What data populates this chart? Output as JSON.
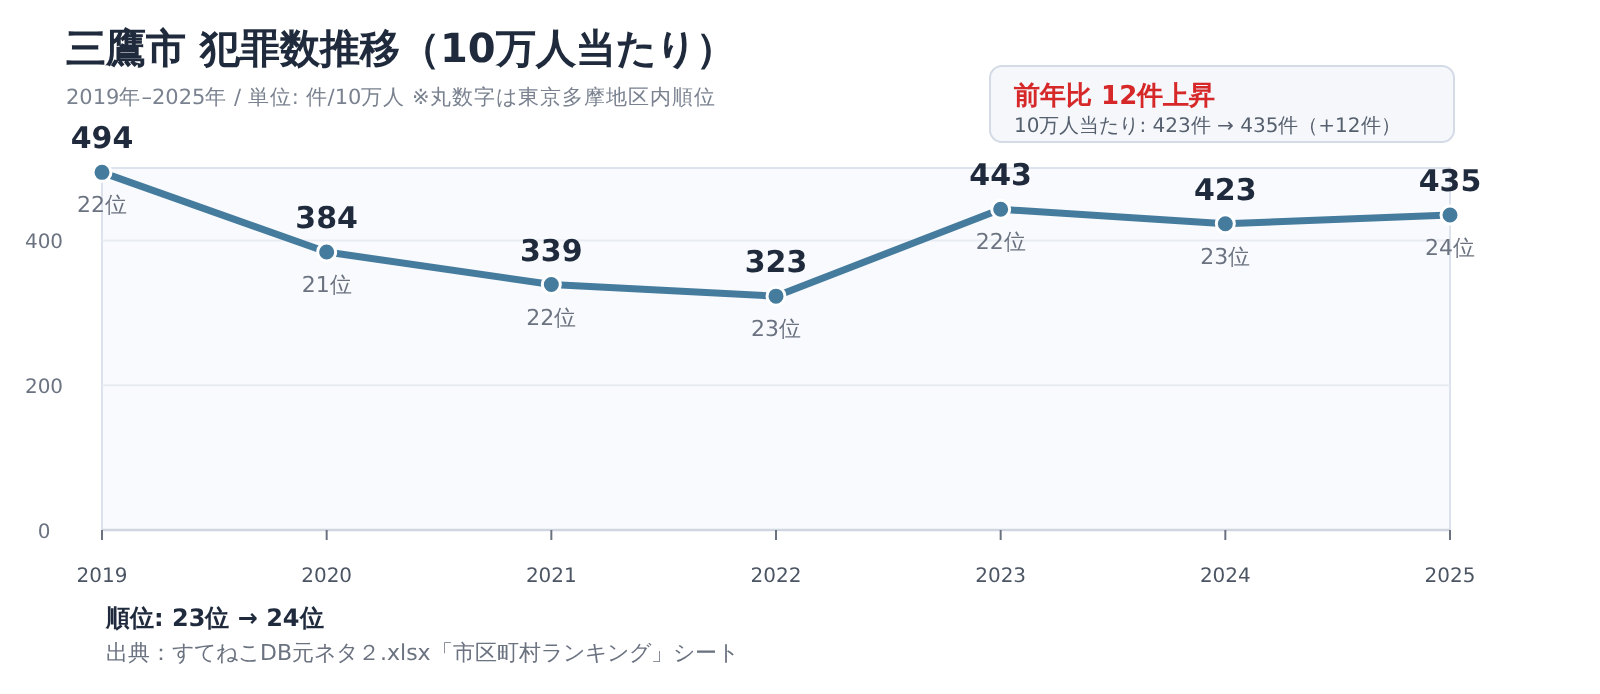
{
  "chart_data": {
    "type": "line",
    "title": "三鷹市  犯罪数推移（10万人当たり）",
    "subtitle": "2019年–2025年 / 単位: 件/10万人     ※丸数字は東京多摩地区内順位",
    "categories": [
      "2019",
      "2020",
      "2021",
      "2022",
      "2023",
      "2024",
      "2025"
    ],
    "series": [
      {
        "color": "#457b9d",
        "values": [
          494,
          384,
          339,
          323,
          443,
          423,
          435
        ]
      }
    ],
    "ylim": [
      0,
      500
    ],
    "yticks": [
      0,
      200,
      400
    ],
    "grid": "y",
    "marker": "circle",
    "line_style": "solid",
    "data_labels": true,
    "annotations": [
      "前年比  12件上昇",
      "10万人当たり: 423件 → 435件（+12件）",
      "順位: 23位 → 24位",
      "出典：すてねこDB元ネタ２.xlsx「市区町村ランキング」シート",
      {
        "text": "22位",
        "x": "2019",
        "y": 494
      },
      {
        "text": "21位",
        "x": "2020",
        "y": 384
      },
      {
        "text": "22位",
        "x": "2021",
        "y": 339
      },
      {
        "text": "23位",
        "x": "2022",
        "y": 323
      },
      {
        "text": "22位",
        "x": "2023",
        "y": 443
      },
      {
        "text": "23位",
        "x": "2024",
        "y": 423
      },
      {
        "text": "24位",
        "x": "2025",
        "y": 435
      }
    ]
  }
}
